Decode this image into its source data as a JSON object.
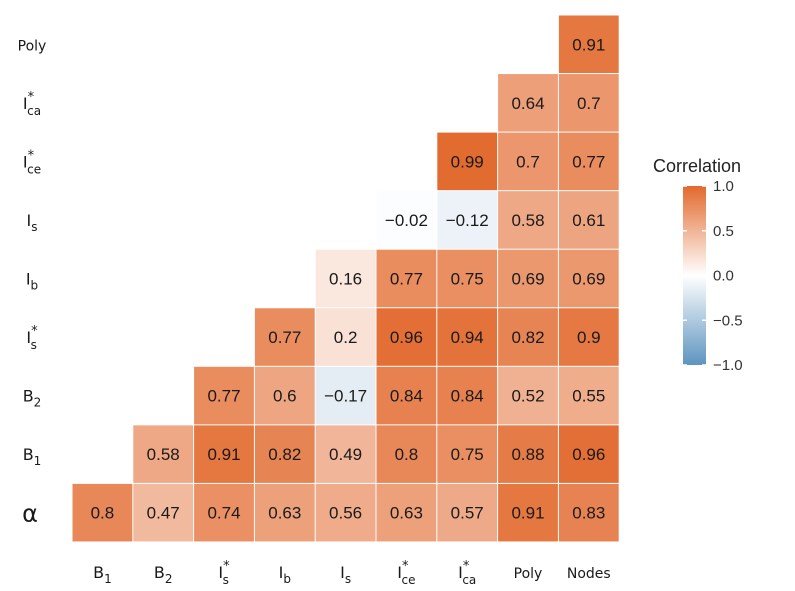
{
  "chart_data": {
    "type": "heatmap",
    "title": "",
    "rows": [
      "α",
      "B1",
      "B2",
      "Is*",
      "Ib",
      "Is",
      "Ice*",
      "Ica*",
      "Poly"
    ],
    "cols": [
      "B1",
      "B2",
      "Is*",
      "Ib",
      "Is",
      "Ice*",
      "Ica*",
      "Poly",
      "Nodes"
    ],
    "row_labels": [
      {
        "base": "α",
        "sub": "",
        "sup": ""
      },
      {
        "base": "B",
        "sub": "1",
        "sup": ""
      },
      {
        "base": "B",
        "sub": "2",
        "sup": ""
      },
      {
        "base": "I",
        "sub": "s",
        "sup": "*"
      },
      {
        "base": "I",
        "sub": "b",
        "sup": ""
      },
      {
        "base": "I",
        "sub": "s",
        "sup": ""
      },
      {
        "base": "I",
        "sub": "ce",
        "sup": "*"
      },
      {
        "base": "I",
        "sub": "ca",
        "sup": "*"
      },
      {
        "base": "Poly",
        "sub": "",
        "sup": ""
      }
    ],
    "col_labels": [
      {
        "base": "B",
        "sub": "1",
        "sup": ""
      },
      {
        "base": "B",
        "sub": "2",
        "sup": ""
      },
      {
        "base": "I",
        "sub": "s",
        "sup": "*"
      },
      {
        "base": "I",
        "sub": "b",
        "sup": ""
      },
      {
        "base": "I",
        "sub": "s",
        "sup": ""
      },
      {
        "base": "I",
        "sub": "ce",
        "sup": "*"
      },
      {
        "base": "I",
        "sub": "ca",
        "sup": "*"
      },
      {
        "base": "Poly",
        "sub": "",
        "sup": ""
      },
      {
        "base": "Nodes",
        "sub": "",
        "sup": ""
      }
    ],
    "values": [
      [
        0.8,
        0.47,
        0.74,
        0.63,
        0.56,
        0.63,
        0.57,
        0.91,
        0.83
      ],
      [
        null,
        0.58,
        0.91,
        0.82,
        0.49,
        0.8,
        0.75,
        0.88,
        0.96
      ],
      [
        null,
        null,
        0.77,
        0.6,
        -0.17,
        0.84,
        0.84,
        0.52,
        0.55
      ],
      [
        null,
        null,
        null,
        0.77,
        0.2,
        0.96,
        0.94,
        0.82,
        0.9
      ],
      [
        null,
        null,
        null,
        null,
        0.16,
        0.77,
        0.75,
        0.69,
        0.69
      ],
      [
        null,
        null,
        null,
        null,
        null,
        -0.02,
        -0.12,
        0.58,
        0.61
      ],
      [
        null,
        null,
        null,
        null,
        null,
        null,
        0.99,
        0.7,
        0.77
      ],
      [
        null,
        null,
        null,
        null,
        null,
        null,
        null,
        0.64,
        0.7
      ],
      [
        null,
        null,
        null,
        null,
        null,
        null,
        null,
        null,
        0.91
      ]
    ],
    "value_labels": [
      [
        "0.8",
        "0.47",
        "0.74",
        "0.63",
        "0.56",
        "0.63",
        "0.57",
        "0.91",
        "0.83"
      ],
      [
        null,
        "0.58",
        "0.91",
        "0.82",
        "0.49",
        "0.8",
        "0.75",
        "0.88",
        "0.96"
      ],
      [
        null,
        null,
        "0.77",
        "0.6",
        "−0.17",
        "0.84",
        "0.84",
        "0.52",
        "0.55"
      ],
      [
        null,
        null,
        null,
        "0.77",
        "0.2",
        "0.96",
        "0.94",
        "0.82",
        "0.9"
      ],
      [
        null,
        null,
        null,
        null,
        "0.16",
        "0.77",
        "0.75",
        "0.69",
        "0.69"
      ],
      [
        null,
        null,
        null,
        null,
        null,
        "−0.02",
        "−0.12",
        "0.58",
        "0.61"
      ],
      [
        null,
        null,
        null,
        null,
        null,
        null,
        "0.99",
        "0.7",
        "0.77"
      ],
      [
        null,
        null,
        null,
        null,
        null,
        null,
        null,
        "0.64",
        "0.7"
      ],
      [
        null,
        null,
        null,
        null,
        null,
        null,
        null,
        null,
        "0.91"
      ]
    ],
    "color_scale": {
      "min": -1.0,
      "max": 1.0,
      "low_color": "#5e94bf",
      "mid_color": "#ffffff",
      "high_color": "#e2692e"
    },
    "legend": {
      "title": "Correlation",
      "ticks": [
        "1.0",
        "0.5",
        "0.0",
        "−0.5",
        "−1.0"
      ],
      "tick_values": [
        1.0,
        0.5,
        0.0,
        -0.5,
        -1.0
      ],
      "placement": "right"
    }
  }
}
